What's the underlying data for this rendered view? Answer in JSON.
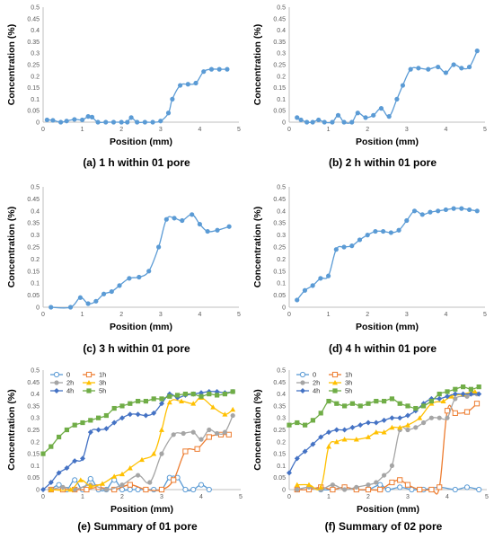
{
  "chart_data": [
    {
      "type": "line",
      "caption": "(a) 1 h within 01 pore",
      "xlabel": "Position (mm)",
      "ylabel": "Concentration (%)",
      "xlim": [
        0,
        5
      ],
      "ylim": [
        0,
        0.5
      ],
      "xticks": [
        "0",
        "1",
        "2",
        "3",
        "4",
        "5"
      ],
      "yticks": [
        "0",
        "0.05",
        "0.1",
        "0.15",
        "0.2",
        "0.25",
        "0.3",
        "0.35",
        "0.4",
        "0.45",
        "0.5"
      ],
      "legend": false,
      "series": [
        {
          "color": "#5b9bd5",
          "marker": "circle",
          "x": [
            0.1,
            0.25,
            0.45,
            0.6,
            0.8,
            1.0,
            1.15,
            1.25,
            1.4,
            1.6,
            1.8,
            2.0,
            2.15,
            2.25,
            2.4,
            2.6,
            2.8,
            3.0,
            3.2,
            3.3,
            3.5,
            3.7,
            3.9,
            4.1,
            4.3,
            4.5,
            4.7
          ],
          "y": [
            0.01,
            0.008,
            0.0,
            0.005,
            0.012,
            0.01,
            0.025,
            0.022,
            0.0,
            0.0,
            0.0,
            0.0,
            0.0,
            0.02,
            0.0,
            0.0,
            0.0,
            0.005,
            0.04,
            0.1,
            0.16,
            0.165,
            0.17,
            0.22,
            0.23,
            0.23,
            0.23
          ]
        }
      ]
    },
    {
      "type": "line",
      "caption": "(b) 2 h within 01 pore",
      "xlabel": "Position (mm)",
      "ylabel": "Concentration (%)",
      "xlim": [
        0,
        5
      ],
      "ylim": [
        0,
        0.5
      ],
      "xticks": [
        "0",
        "1",
        "2",
        "3",
        "4",
        "5"
      ],
      "yticks": [
        "0",
        "0.05",
        "0.1",
        "0.15",
        "0.2",
        "0.25",
        "0.3",
        "0.35",
        "0.4",
        "0.45",
        "0.5"
      ],
      "legend": false,
      "series": [
        {
          "color": "#5b9bd5",
          "marker": "circle",
          "x": [
            0.2,
            0.3,
            0.45,
            0.6,
            0.75,
            0.9,
            1.1,
            1.25,
            1.4,
            1.6,
            1.75,
            1.95,
            2.15,
            2.35,
            2.55,
            2.75,
            2.9,
            3.1,
            3.3,
            3.55,
            3.8,
            4.0,
            4.2,
            4.4,
            4.6,
            4.8
          ],
          "y": [
            0.02,
            0.01,
            0.0,
            0.0,
            0.01,
            0.0,
            0.0,
            0.03,
            0.0,
            0.0,
            0.04,
            0.02,
            0.03,
            0.06,
            0.025,
            0.1,
            0.16,
            0.23,
            0.235,
            0.23,
            0.24,
            0.215,
            0.25,
            0.235,
            0.24,
            0.31
          ]
        }
      ]
    },
    {
      "type": "line",
      "caption": "(c) 3 h within 01 pore",
      "xlabel": "Position (mm)",
      "ylabel": "Concentration (%)",
      "xlim": [
        0,
        5
      ],
      "ylim": [
        0,
        0.5
      ],
      "xticks": [
        "0",
        "1",
        "2",
        "3",
        "4",
        "5"
      ],
      "yticks": [
        "0",
        "0.05",
        "0.1",
        "0.15",
        "0.2",
        "0.25",
        "0.3",
        "0.35",
        "0.4",
        "0.45",
        "0.5"
      ],
      "legend": false,
      "series": [
        {
          "color": "#5b9bd5",
          "marker": "circle",
          "x": [
            0.2,
            0.7,
            0.95,
            1.15,
            1.35,
            1.55,
            1.75,
            1.95,
            2.2,
            2.45,
            2.7,
            2.95,
            3.15,
            3.35,
            3.55,
            3.8,
            4.0,
            4.2,
            4.45,
            4.75
          ],
          "y": [
            0.0,
            0.0,
            0.04,
            0.015,
            0.025,
            0.055,
            0.065,
            0.09,
            0.12,
            0.125,
            0.15,
            0.25,
            0.365,
            0.37,
            0.36,
            0.385,
            0.345,
            0.315,
            0.32,
            0.335
          ]
        }
      ]
    },
    {
      "type": "line",
      "caption": "(d) 4 h within 01 pore",
      "xlabel": "Position (mm)",
      "ylabel": "Concentration (%)",
      "xlim": [
        0,
        5
      ],
      "ylim": [
        0,
        0.5
      ],
      "xticks": [
        "0",
        "1",
        "2",
        "3",
        "4",
        "5"
      ],
      "yticks": [
        "0",
        "0.05",
        "0.1",
        "0.15",
        "0.2",
        "0.25",
        "0.3",
        "0.35",
        "0.4",
        "0.45",
        "0.5"
      ],
      "legend": false,
      "series": [
        {
          "color": "#5b9bd5",
          "marker": "circle",
          "x": [
            0.2,
            0.4,
            0.6,
            0.8,
            1.0,
            1.2,
            1.4,
            1.6,
            1.8,
            2.0,
            2.2,
            2.4,
            2.6,
            2.8,
            3.0,
            3.2,
            3.4,
            3.6,
            3.8,
            4.0,
            4.2,
            4.4,
            4.6,
            4.8
          ],
          "y": [
            0.03,
            0.07,
            0.09,
            0.12,
            0.13,
            0.24,
            0.25,
            0.255,
            0.28,
            0.3,
            0.315,
            0.315,
            0.31,
            0.32,
            0.36,
            0.4,
            0.385,
            0.395,
            0.4,
            0.405,
            0.41,
            0.41,
            0.405,
            0.4
          ]
        }
      ]
    },
    {
      "type": "line",
      "caption": "(e) Summary of 01 pore",
      "xlabel": "Position (mm)",
      "ylabel": "Concentration (%)",
      "xlim": [
        0,
        5
      ],
      "ylim": [
        0,
        0.5
      ],
      "xticks": [
        "0",
        "1",
        "2",
        "3",
        "4",
        "5"
      ],
      "yticks": [
        "0",
        "0.05",
        "0.1",
        "0.15",
        "0.2",
        "0.25",
        "0.3",
        "0.35",
        "0.4",
        "0.45",
        "0.5"
      ],
      "legend": true,
      "series": [
        {
          "name": "0",
          "color": "#5b9bd5",
          "marker": "circle-open",
          "x": [
            0.2,
            0.4,
            0.6,
            0.8,
            1.0,
            1.2,
            1.4,
            1.6,
            1.8,
            2.0,
            2.2,
            2.4,
            2.6,
            2.8,
            3.0,
            3.2,
            3.4,
            3.6,
            3.8,
            4.0,
            4.2
          ],
          "y": [
            0.0,
            0.02,
            0.0,
            0.04,
            0.0,
            0.045,
            0.0,
            0.0,
            0.04,
            0.0,
            0.0,
            0.0,
            0.0,
            0.0,
            0.0,
            0.05,
            0.05,
            0.0,
            0.0,
            0.02,
            0.0
          ]
        },
        {
          "name": "1h",
          "color": "#ed7d31",
          "marker": "square-open",
          "x": [
            0.2,
            0.5,
            0.8,
            1.1,
            1.4,
            1.8,
            2.2,
            2.6,
            3.0,
            3.3,
            3.6,
            3.9,
            4.2,
            4.5,
            4.7
          ],
          "y": [
            0.0,
            0.0,
            0.0,
            0.0,
            0.01,
            0.0,
            0.02,
            0.0,
            0.0,
            0.04,
            0.16,
            0.17,
            0.22,
            0.23,
            0.23
          ]
        },
        {
          "name": "2h",
          "color": "#a5a5a5",
          "marker": "circle",
          "x": [
            0.2,
            0.5,
            0.8,
            1.2,
            1.6,
            2.0,
            2.4,
            2.7,
            3.0,
            3.3,
            3.55,
            3.8,
            4.0,
            4.2,
            4.4,
            4.6,
            4.8
          ],
          "y": [
            0.0,
            0.01,
            0.0,
            0.02,
            0.0,
            0.02,
            0.06,
            0.03,
            0.15,
            0.23,
            0.235,
            0.24,
            0.21,
            0.25,
            0.235,
            0.24,
            0.31
          ]
        },
        {
          "name": "3h",
          "color": "#ffc000",
          "marker": "triangle",
          "x": [
            0.2,
            0.7,
            0.95,
            1.2,
            1.5,
            1.8,
            2.0,
            2.2,
            2.5,
            2.8,
            3.0,
            3.2,
            3.5,
            3.8,
            4.0,
            4.3,
            4.6,
            4.8
          ],
          "y": [
            0.0,
            0.0,
            0.04,
            0.015,
            0.025,
            0.055,
            0.065,
            0.09,
            0.125,
            0.15,
            0.25,
            0.365,
            0.37,
            0.36,
            0.385,
            0.345,
            0.315,
            0.335
          ]
        },
        {
          "name": "4h",
          "color": "#4472c4",
          "marker": "diamond",
          "x": [
            0.0,
            0.2,
            0.4,
            0.6,
            0.8,
            1.0,
            1.2,
            1.4,
            1.6,
            1.8,
            2.0,
            2.2,
            2.4,
            2.6,
            2.8,
            3.0,
            3.2,
            3.4,
            3.6,
            3.8,
            4.0,
            4.2,
            4.4,
            4.6,
            4.8
          ],
          "y": [
            0.0,
            0.03,
            0.07,
            0.09,
            0.12,
            0.13,
            0.24,
            0.25,
            0.255,
            0.28,
            0.3,
            0.315,
            0.315,
            0.31,
            0.32,
            0.36,
            0.4,
            0.385,
            0.395,
            0.4,
            0.405,
            0.41,
            0.41,
            0.405,
            0.41
          ]
        },
        {
          "name": "5h",
          "color": "#70ad47",
          "marker": "square",
          "x": [
            0.0,
            0.2,
            0.4,
            0.6,
            0.8,
            1.0,
            1.2,
            1.4,
            1.6,
            1.8,
            2.0,
            2.2,
            2.4,
            2.6,
            2.8,
            3.0,
            3.2,
            3.4,
            3.6,
            3.8,
            4.0,
            4.2,
            4.4,
            4.6,
            4.8
          ],
          "y": [
            0.15,
            0.18,
            0.22,
            0.25,
            0.27,
            0.28,
            0.29,
            0.3,
            0.31,
            0.34,
            0.35,
            0.36,
            0.37,
            0.37,
            0.38,
            0.38,
            0.39,
            0.395,
            0.4,
            0.4,
            0.39,
            0.4,
            0.395,
            0.4,
            0.41
          ]
        }
      ]
    },
    {
      "type": "line",
      "caption": "(f) Summary of 02 pore",
      "xlabel": "Position (mm)",
      "ylabel": "Concentration (%)",
      "xlim": [
        0,
        5
      ],
      "ylim": [
        0,
        0.5
      ],
      "xticks": [
        "0",
        "1",
        "2",
        "3",
        "4",
        "5"
      ],
      "yticks": [
        "0",
        "0.05",
        "0.1",
        "0.15",
        "0.2",
        "0.25",
        "0.3",
        "0.35",
        "0.4",
        "0.45",
        "0.5"
      ],
      "legend": true,
      "series": [
        {
          "name": "0",
          "color": "#5b9bd5",
          "marker": "circle-open",
          "x": [
            0.2,
            0.5,
            0.8,
            1.1,
            1.4,
            1.7,
            2.0,
            2.3,
            2.5,
            2.8,
            3.1,
            3.4,
            3.8,
            4.2,
            4.5,
            4.8
          ],
          "y": [
            0.0,
            0.01,
            0.0,
            0.0,
            0.01,
            0.0,
            0.0,
            0.02,
            0.0,
            0.01,
            0.0,
            0.0,
            0.01,
            0.0,
            0.01,
            0.0
          ]
        },
        {
          "name": "1h",
          "color": "#ed7d31",
          "marker": "square-open",
          "x": [
            0.2,
            0.5,
            0.8,
            1.1,
            1.4,
            1.7,
            2.0,
            2.3,
            2.6,
            2.8,
            3.0,
            3.3,
            3.6,
            3.8,
            4.0,
            4.2,
            4.5,
            4.75
          ],
          "y": [
            0.0,
            0.0,
            0.01,
            0.0,
            0.01,
            0.0,
            0.0,
            0.0,
            0.03,
            0.04,
            0.02,
            0.0,
            0.0,
            0.01,
            0.33,
            0.32,
            0.325,
            0.36
          ]
        },
        {
          "name": "2h",
          "color": "#a5a5a5",
          "marker": "circle",
          "x": [
            0.2,
            0.5,
            0.8,
            1.1,
            1.4,
            1.7,
            2.0,
            2.2,
            2.4,
            2.6,
            2.8,
            3.0,
            3.2,
            3.4,
            3.6,
            3.8,
            4.0,
            4.2,
            4.5,
            4.75
          ],
          "y": [
            0.0,
            0.01,
            0.0,
            0.02,
            0.0,
            0.01,
            0.02,
            0.03,
            0.06,
            0.1,
            0.25,
            0.25,
            0.26,
            0.28,
            0.3,
            0.3,
            0.3,
            0.38,
            0.39,
            0.4
          ]
        },
        {
          "name": "3h",
          "color": "#ffc000",
          "marker": "triangle",
          "x": [
            0.2,
            0.5,
            0.8,
            1.0,
            1.2,
            1.4,
            1.7,
            2.0,
            2.2,
            2.4,
            2.6,
            2.8,
            3.0,
            3.3,
            3.6,
            3.9,
            4.1,
            4.4,
            4.7
          ],
          "y": [
            0.02,
            0.02,
            0.01,
            0.18,
            0.2,
            0.21,
            0.21,
            0.22,
            0.24,
            0.24,
            0.26,
            0.26,
            0.27,
            0.3,
            0.36,
            0.37,
            0.39,
            0.4,
            0.41
          ]
        },
        {
          "name": "4h",
          "color": "#4472c4",
          "marker": "diamond",
          "x": [
            0.0,
            0.2,
            0.4,
            0.6,
            0.8,
            1.0,
            1.2,
            1.4,
            1.6,
            1.8,
            2.0,
            2.2,
            2.4,
            2.6,
            2.8,
            3.0,
            3.2,
            3.4,
            3.6,
            3.8,
            4.0,
            4.2,
            4.4,
            4.6,
            4.8
          ],
          "y": [
            0.07,
            0.13,
            0.16,
            0.19,
            0.22,
            0.24,
            0.25,
            0.25,
            0.26,
            0.27,
            0.28,
            0.28,
            0.29,
            0.3,
            0.3,
            0.31,
            0.33,
            0.36,
            0.38,
            0.38,
            0.39,
            0.4,
            0.4,
            0.4,
            0.4
          ]
        },
        {
          "name": "5h",
          "color": "#70ad47",
          "marker": "square",
          "x": [
            0.0,
            0.2,
            0.4,
            0.6,
            0.8,
            1.0,
            1.2,
            1.4,
            1.6,
            1.8,
            2.0,
            2.2,
            2.4,
            2.6,
            2.8,
            3.0,
            3.2,
            3.4,
            3.6,
            3.8,
            4.0,
            4.2,
            4.4,
            4.6,
            4.8
          ],
          "y": [
            0.27,
            0.28,
            0.27,
            0.29,
            0.32,
            0.37,
            0.36,
            0.35,
            0.36,
            0.35,
            0.36,
            0.37,
            0.37,
            0.38,
            0.36,
            0.35,
            0.34,
            0.35,
            0.37,
            0.4,
            0.41,
            0.42,
            0.43,
            0.42,
            0.43
          ]
        }
      ]
    }
  ]
}
